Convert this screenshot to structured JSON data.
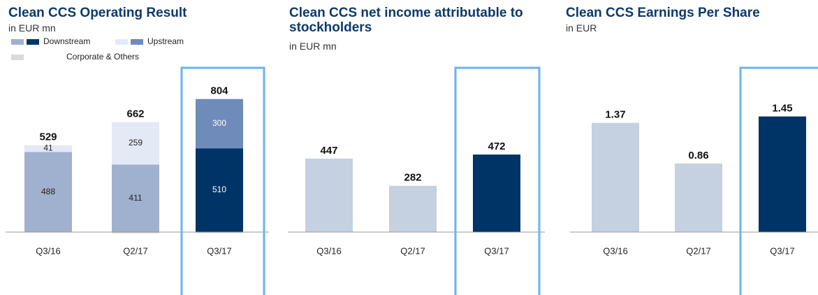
{
  "chart_data": [
    {
      "type": "stacked_bar",
      "title": "Clean CCS Operating Result",
      "subtitle": "in EUR mn",
      "categories": [
        "Q3/16",
        "Q2/17",
        "Q3/17"
      ],
      "highlight_index": 2,
      "series": [
        {
          "name": "Downstream",
          "color": "#003466",
          "muted_color": "#9fb1cf",
          "values": [
            488,
            411,
            510
          ]
        },
        {
          "name": "Upstream",
          "color": "#6f8bba",
          "muted_color": "#e3e9f5",
          "values": [
            41,
            259,
            300
          ]
        },
        {
          "name": "Corporate & Others",
          "color": "#d9d9d9",
          "values": [
            0,
            -8,
            -6
          ]
        }
      ],
      "labeled_series": [
        0,
        1
      ],
      "totals": [
        529,
        662,
        804
      ],
      "ylim": [
        0,
        1000
      ]
    },
    {
      "type": "bar",
      "title": "Clean CCS net income attributable to stockholders",
      "subtitle": "in EUR mn",
      "categories": [
        "Q3/16",
        "Q2/17",
        "Q3/17"
      ],
      "values": [
        447,
        282,
        472
      ],
      "highlight_index": 2,
      "color": "#003466",
      "muted_color": "#c5d0e1",
      "ylim": [
        0,
        1000
      ]
    },
    {
      "type": "bar",
      "title": "Clean CCS Earnings Per Share",
      "subtitle": "in EUR",
      "categories": [
        "Q3/16",
        "Q2/17",
        "Q3/17"
      ],
      "values": [
        1.37,
        0.86,
        1.45
      ],
      "highlight_index": 2,
      "color": "#003466",
      "muted_color": "#c5d0e1",
      "ylim": [
        0,
        2.06
      ]
    }
  ]
}
